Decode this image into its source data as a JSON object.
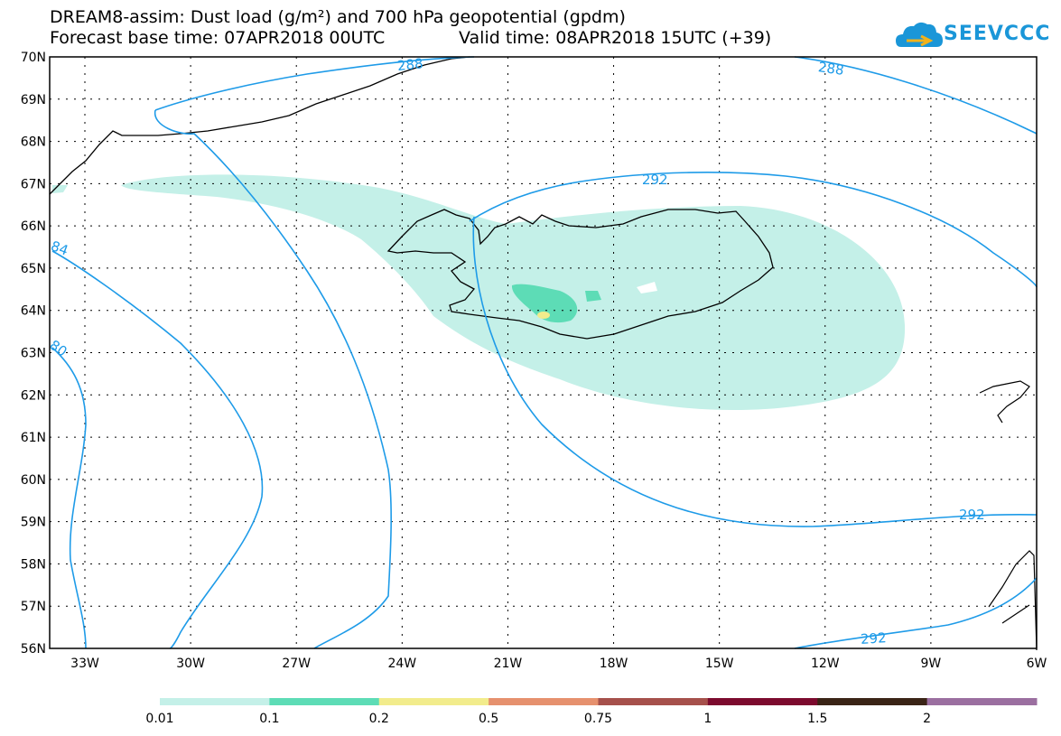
{
  "header": {
    "title_line1": "DREAM8-assim: Dust load (g/m²) and 700 hPa geopotential (gpdm)",
    "base_time": "Forecast base time: 07APR2018 00UTC",
    "valid_time": "Valid time: 08APR2018 15UTC (+39)",
    "logo_text": "SEEVCCC",
    "logo_icon": "cloud-icon",
    "brand_color": "#1a96d8"
  },
  "map": {
    "lat_labels": [
      "70N",
      "69N",
      "68N",
      "67N",
      "66N",
      "65N",
      "64N",
      "63N",
      "62N",
      "61N",
      "60N",
      "59N",
      "58N",
      "57N",
      "56N"
    ],
    "lon_labels": [
      "33W",
      "30W",
      "27W",
      "24W",
      "21W",
      "18W",
      "15W",
      "12W",
      "9W",
      "6W"
    ],
    "contour_labels": [
      "288",
      "288",
      "292",
      "84",
      "80",
      "292",
      "292"
    ],
    "contour_color": "#1e9be8",
    "dust_colors": [
      "#c4f0e8",
      "#5ddcb6",
      "#f2ec8c"
    ]
  },
  "legend": {
    "ticks": [
      "0.01",
      "0.1",
      "0.2",
      "0.5",
      "0.75",
      "1",
      "1.5",
      "2"
    ],
    "colors": [
      "#c4f0e8",
      "#5ddcb6",
      "#f2ec8c",
      "#e6916e",
      "#a6504b",
      "#7c0a2e",
      "#3a2416",
      "#9b6fa0"
    ]
  }
}
